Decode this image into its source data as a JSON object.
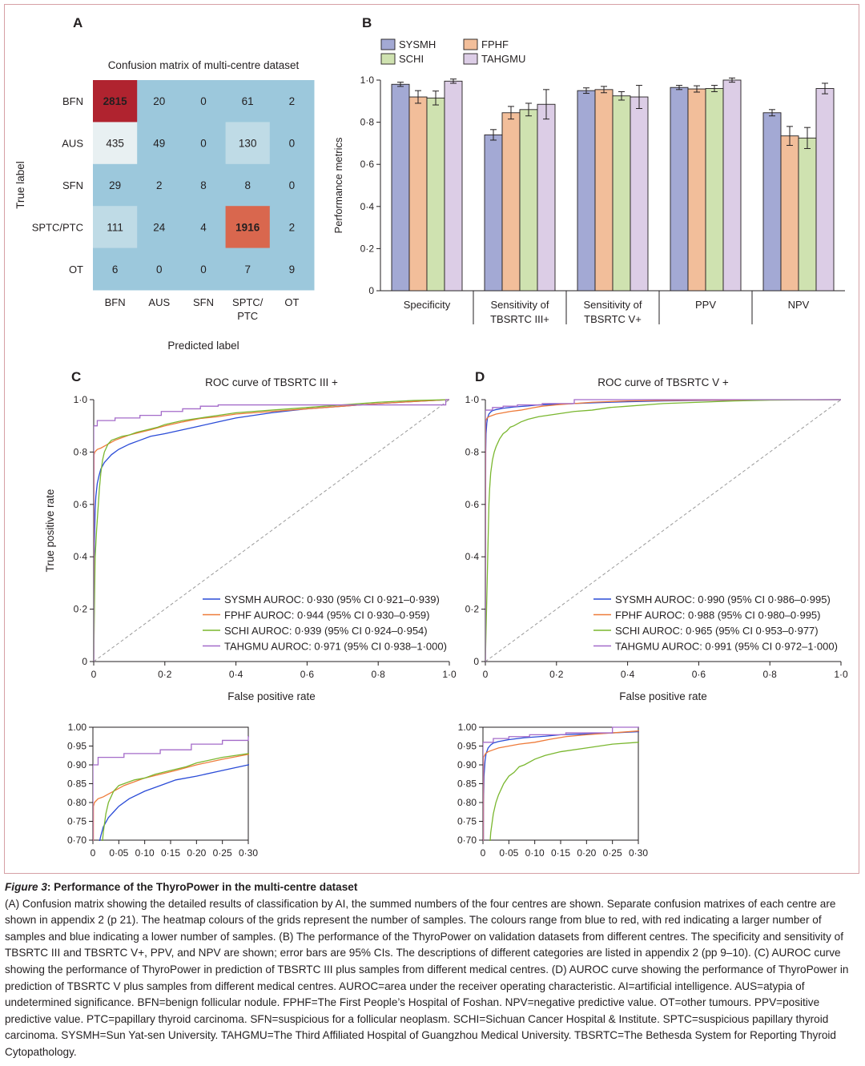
{
  "panel_letters": {
    "a": "A",
    "b": "B",
    "c": "C",
    "d": "D"
  },
  "chart_data": [
    {
      "id": "A",
      "type": "heatmap",
      "title": "Confusion matrix of multi-centre dataset",
      "xlabel": "Predicted label",
      "ylabel": "True label",
      "rows": [
        "BFN",
        "AUS",
        "SFN",
        "SPTC/PTC",
        "OT"
      ],
      "cols": [
        "BFN",
        "AUS",
        "SFN",
        "SPTC/\nPTC",
        "OT"
      ],
      "values": [
        [
          2815,
          20,
          0,
          61,
          2
        ],
        [
          435,
          49,
          0,
          130,
          0
        ],
        [
          29,
          2,
          8,
          8,
          0
        ],
        [
          111,
          24,
          4,
          1916,
          2
        ],
        [
          6,
          0,
          0,
          7,
          9
        ]
      ],
      "colors": {
        "high": "#b0232f",
        "second": "#d9674e",
        "mid": "#bfdbe6",
        "near_white": "#e8f0f2",
        "low": "#9cc8dc"
      }
    },
    {
      "id": "B",
      "type": "bar",
      "ylabel": "Performance metrics",
      "ylim": [
        0,
        1
      ],
      "yticks": [
        "0",
        "0·2",
        "0·4",
        "0·6",
        "0·8",
        "1·0"
      ],
      "categories": [
        "Specificity",
        "Sensitivity of\nTBSRTC III+",
        "Sensitivity of\nTBSRTC V+",
        "PPV",
        "NPV"
      ],
      "legend": {
        "placement": "top-left",
        "columns": 2
      },
      "series": [
        {
          "name": "SYSMH",
          "color": "#a3a9d4",
          "values": [
            0.98,
            0.74,
            0.95,
            0.965,
            0.845
          ],
          "err": [
            0.01,
            0.025,
            0.013,
            0.01,
            0.015
          ]
        },
        {
          "name": "FPHF",
          "color": "#f2be9a",
          "values": [
            0.92,
            0.845,
            0.955,
            0.958,
            0.735
          ],
          "err": [
            0.03,
            0.03,
            0.015,
            0.015,
            0.045
          ]
        },
        {
          "name": "SCHI",
          "color": "#cfe2b0",
          "values": [
            0.915,
            0.86,
            0.925,
            0.96,
            0.725
          ],
          "err": [
            0.033,
            0.03,
            0.02,
            0.015,
            0.05
          ]
        },
        {
          "name": "TAHGMU",
          "color": "#dccde6",
          "values": [
            0.995,
            0.885,
            0.92,
            1.0,
            0.96
          ],
          "err": [
            0.01,
            0.07,
            0.055,
            0.01,
            0.025
          ]
        }
      ]
    },
    {
      "id": "C",
      "type": "line",
      "title": "ROC curve of TBSRTC III +",
      "xlabel": "False positive rate",
      "ylabel": "True positive rate",
      "xlim": [
        0,
        1
      ],
      "ylim": [
        0,
        1
      ],
      "ticks": [
        "0",
        "0·2",
        "0·4",
        "0·6",
        "0·8",
        "1·0"
      ],
      "legend": {
        "placement": "bottom-right"
      },
      "series": [
        {
          "label": "SYSMH AUROC: 0·930 (95% CI 0·921–0·939)",
          "color": "#2a4bd7",
          "x": [
            0,
            0.002,
            0.004,
            0.006,
            0.01,
            0.015,
            0.02,
            0.03,
            0.04,
            0.05,
            0.07,
            0.1,
            0.13,
            0.16,
            0.2,
            0.25,
            0.3,
            0.35,
            0.4,
            0.5,
            0.6,
            0.7,
            0.8,
            0.9,
            1.0
          ],
          "y": [
            0,
            0.45,
            0.58,
            0.63,
            0.68,
            0.71,
            0.735,
            0.76,
            0.775,
            0.79,
            0.81,
            0.83,
            0.845,
            0.86,
            0.87,
            0.885,
            0.9,
            0.915,
            0.93,
            0.95,
            0.965,
            0.975,
            0.985,
            0.993,
            1.0
          ]
        },
        {
          "label": "FPHF AUROC: 0·944 (95% CI 0·930–0·959)",
          "color": "#ee7b3a",
          "x": [
            0,
            0.001,
            0.003,
            0.01,
            0.02,
            0.04,
            0.06,
            0.08,
            0.1,
            0.13,
            0.16,
            0.2,
            0.25,
            0.3,
            0.35,
            0.4,
            0.5,
            0.6,
            0.7,
            0.8,
            0.9,
            1.0
          ],
          "y": [
            0,
            0.79,
            0.8,
            0.81,
            0.815,
            0.83,
            0.845,
            0.855,
            0.865,
            0.875,
            0.885,
            0.9,
            0.915,
            0.928,
            0.935,
            0.945,
            0.955,
            0.965,
            0.975,
            0.985,
            0.993,
            1.0
          ]
        },
        {
          "label": "SCHI AUROC: 0·939 (95% CI 0·924–0·954)",
          "color": "#7ab72f",
          "x": [
            0,
            0.004,
            0.008,
            0.012,
            0.016,
            0.02,
            0.025,
            0.03,
            0.04,
            0.05,
            0.06,
            0.08,
            0.1,
            0.12,
            0.15,
            0.18,
            0.2,
            0.25,
            0.3,
            0.35,
            0.4,
            0.5,
            0.6,
            0.7,
            0.8,
            0.9,
            1.0
          ],
          "y": [
            0,
            0.4,
            0.5,
            0.58,
            0.66,
            0.72,
            0.77,
            0.8,
            0.83,
            0.845,
            0.85,
            0.86,
            0.865,
            0.875,
            0.885,
            0.895,
            0.905,
            0.92,
            0.93,
            0.94,
            0.95,
            0.96,
            0.97,
            0.98,
            0.99,
            0.997,
            1.0
          ]
        },
        {
          "label": "TAHGMU AUROC: 0·971 (95% CI 0·938–1·000)",
          "color": "#a46bc9",
          "x": [
            0,
            0,
            0.01,
            0.01,
            0.06,
            0.06,
            0.13,
            0.13,
            0.19,
            0.19,
            0.25,
            0.25,
            0.3,
            0.3,
            0.35,
            0.35,
            0.55,
            0.55,
            0.99,
            0.99,
            1.0
          ],
          "y": [
            0,
            0.9,
            0.9,
            0.92,
            0.92,
            0.93,
            0.93,
            0.94,
            0.94,
            0.955,
            0.955,
            0.965,
            0.965,
            0.975,
            0.975,
            0.98,
            0.98,
            0.98,
            0.98,
            1.0,
            1.0
          ]
        }
      ]
    },
    {
      "id": "D",
      "type": "line",
      "title": "ROC curve of TBSRTC V +",
      "xlabel": "False positive rate",
      "ylabel": "",
      "xlim": [
        0,
        1
      ],
      "ylim": [
        0,
        1
      ],
      "ticks": [
        "0",
        "0·2",
        "0·4",
        "0·6",
        "0·8",
        "1·0"
      ],
      "legend": {
        "placement": "bottom-right"
      },
      "series": [
        {
          "label": "SYSMH AUROC: 0·990 (95% CI 0·986–0·995)",
          "color": "#2a4bd7",
          "x": [
            0,
            0.001,
            0.002,
            0.004,
            0.006,
            0.01,
            0.015,
            0.02,
            0.03,
            0.05,
            0.08,
            0.12,
            0.15,
            0.2,
            0.25,
            0.3,
            0.4,
            0.5,
            0.6,
            0.8,
            1.0
          ],
          "y": [
            0,
            0.8,
            0.87,
            0.91,
            0.93,
            0.945,
            0.953,
            0.958,
            0.962,
            0.967,
            0.972,
            0.976,
            0.98,
            0.982,
            0.985,
            0.988,
            0.992,
            0.995,
            0.997,
            0.999,
            1.0
          ]
        },
        {
          "label": "FPHF AUROC: 0·988 (95% CI 0·980–0·995)",
          "color": "#ee7b3a",
          "x": [
            0,
            0.001,
            0.005,
            0.01,
            0.02,
            0.03,
            0.05,
            0.07,
            0.1,
            0.13,
            0.16,
            0.2,
            0.25,
            0.3,
            0.4,
            0.5,
            0.6,
            0.8,
            1.0
          ],
          "y": [
            0,
            0.92,
            0.93,
            0.935,
            0.94,
            0.945,
            0.95,
            0.955,
            0.96,
            0.968,
            0.975,
            0.98,
            0.985,
            0.99,
            0.995,
            0.997,
            0.998,
            0.999,
            1.0
          ]
        },
        {
          "label": "SCHI AUROC: 0·965 (95% CI 0·953–0·977)",
          "color": "#7ab72f",
          "x": [
            0,
            0.01,
            0.012,
            0.015,
            0.02,
            0.025,
            0.03,
            0.04,
            0.05,
            0.06,
            0.07,
            0.08,
            0.1,
            0.12,
            0.15,
            0.2,
            0.25,
            0.3,
            0.35,
            0.4,
            0.5,
            0.6,
            0.7,
            0.8,
            1.0
          ],
          "y": [
            0,
            0.6,
            0.66,
            0.72,
            0.77,
            0.8,
            0.82,
            0.85,
            0.87,
            0.88,
            0.895,
            0.9,
            0.915,
            0.925,
            0.935,
            0.945,
            0.955,
            0.96,
            0.97,
            0.975,
            0.985,
            0.99,
            0.995,
            0.998,
            1.0
          ]
        },
        {
          "label": "TAHGMU AUROC: 0·991 (95% CI 0·972–1·000)",
          "color": "#a46bc9",
          "x": [
            0,
            0,
            0.02,
            0.02,
            0.05,
            0.05,
            0.09,
            0.09,
            0.16,
            0.16,
            0.25,
            0.25,
            1.0
          ],
          "y": [
            0,
            0.96,
            0.96,
            0.97,
            0.97,
            0.975,
            0.975,
            0.98,
            0.98,
            0.985,
            0.985,
            1.0,
            1.0
          ]
        }
      ]
    },
    {
      "id": "C-inset",
      "type": "line",
      "xlim": [
        0,
        0.3
      ],
      "ylim": [
        0.7,
        1.0
      ],
      "xticks": [
        "0",
        "0·05",
        "0·10",
        "0·15",
        "0·20",
        "0·25",
        "0·30"
      ],
      "yticks": [
        "0·70",
        "0·75",
        "0·80",
        "0·85",
        "0·90",
        "0·95",
        "1.00"
      ],
      "series_ref": "C"
    },
    {
      "id": "D-inset",
      "type": "line",
      "xlim": [
        0,
        0.3
      ],
      "ylim": [
        0.7,
        1.0
      ],
      "xticks": [
        "0",
        "0·05",
        "0·10",
        "0·15",
        "0·20",
        "0·25",
        "0·30"
      ],
      "yticks": [
        "0·70",
        "0·75",
        "0·80",
        "0·85",
        "0·90",
        "0·95",
        "1.00"
      ],
      "series_ref": "D"
    }
  ],
  "caption": {
    "fig_label": "Figure 3",
    "title": ": Performance of the ThyroPower in the multi-centre dataset",
    "body": "(A) Confusion matrix showing the detailed results of classification by AI, the summed numbers of the four centres are shown. Separate confusion matrixes of each centre are shown in appendix 2 (p 21). The heatmap colours of the grids represent the number of samples. The colours range from blue to red, with red indicating a larger number of samples and blue indicating a lower number of samples. (B) The performance of the ThyroPower on validation datasets from different centres. The specificity and sensitivity of TBSRTC III and TBSRTC V+, PPV, and NPV are shown; error bars are 95% CIs. The descriptions of different categories are listed in appendix 2 (pp 9–10). (C) AUROC curve showing the performance of ThyroPower in prediction of TBSRTC III plus samples from different medical centres. (D) AUROC curve showing the performance of ThyroPower in prediction of TBSRTC V plus samples from different medical centres. AUROC=area under the receiver operating characteristic. AI=artificial intelligence. AUS=atypia of undetermined significance. BFN=benign follicular nodule. FPHF=The First People’s Hospital of Foshan. NPV=negative predictive value. OT=other tumours. PPV=positive predictive value. PTC=papillary thyroid carcinoma. SFN=suspicious for a follicular neoplasm. SCHI=Sichuan Cancer Hospital & Institute. SPTC=suspicious papillary thyroid carcinoma. SYSMH=Sun Yat-sen University. TAHGMU=The Third Affiliated Hospital of Guangzhou Medical University. TBSRTC=The Bethesda System for Reporting Thyroid Cytopathology."
  }
}
